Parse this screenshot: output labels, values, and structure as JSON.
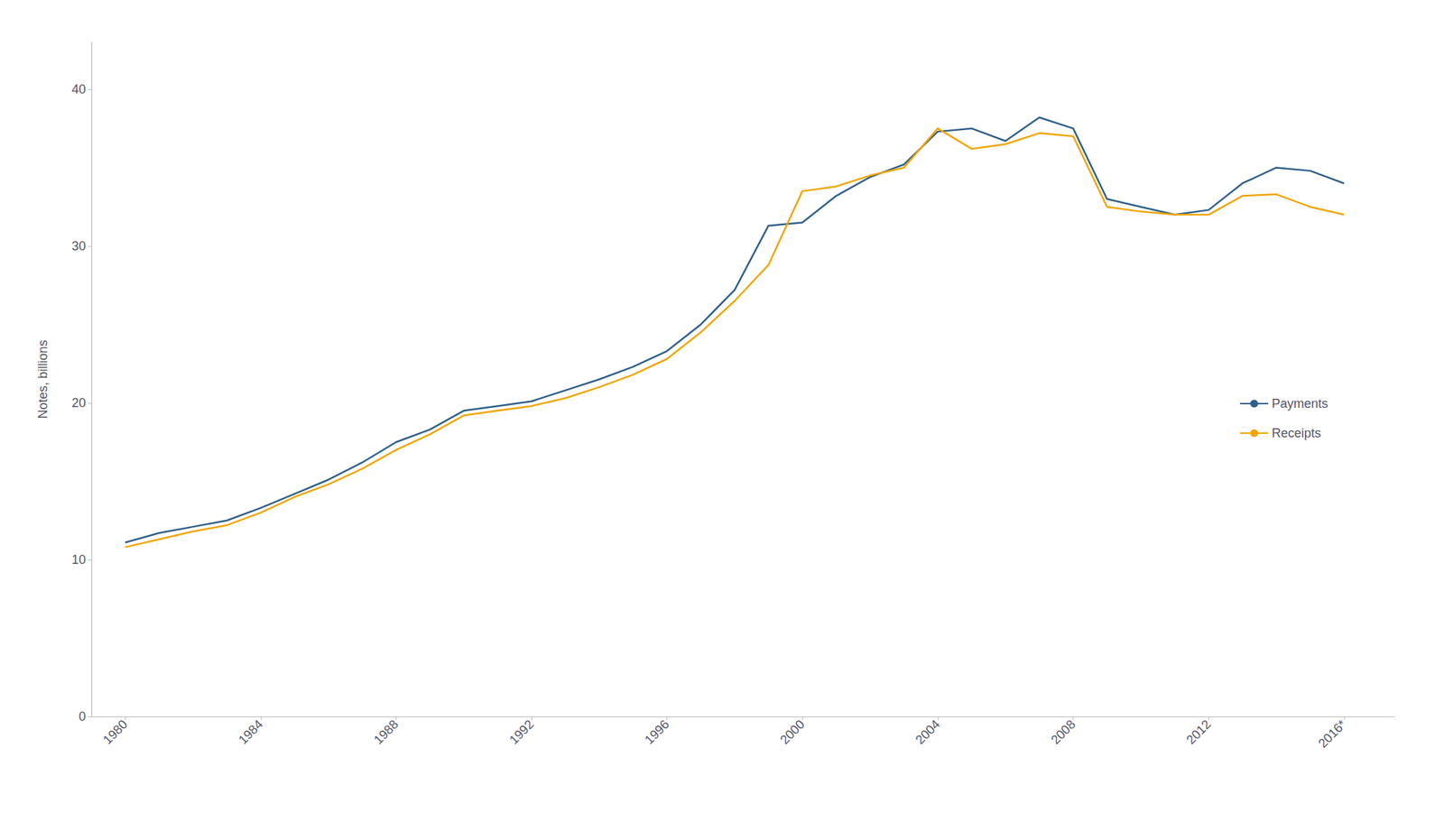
{
  "chart_data": {
    "type": "line",
    "x": [
      1980,
      1981,
      1982,
      1983,
      1984,
      1985,
      1986,
      1987,
      1988,
      1989,
      1990,
      1991,
      1992,
      1993,
      1994,
      1995,
      1996,
      1997,
      1998,
      1999,
      2000,
      2001,
      2002,
      2003,
      2004,
      2005,
      2006,
      2007,
      2008,
      2009,
      2010,
      2011,
      2012,
      2013,
      2014,
      2015,
      2016
    ],
    "series": [
      {
        "name": "Payments",
        "color": "#2E5F8A",
        "values": [
          11.1,
          11.7,
          12.1,
          12.5,
          13.3,
          14.2,
          15.1,
          16.2,
          17.5,
          18.3,
          19.5,
          19.8,
          20.1,
          20.8,
          21.5,
          22.3,
          23.3,
          25.0,
          27.2,
          31.3,
          31.5,
          33.2,
          34.4,
          35.2,
          37.3,
          37.5,
          36.7,
          38.2,
          37.5,
          33.0,
          32.5,
          32.0,
          32.3,
          34.0,
          35.0,
          34.8,
          34.0
        ]
      },
      {
        "name": "Receipts",
        "color": "#F0A500",
        "values": [
          10.8,
          11.3,
          11.8,
          12.2,
          13.0,
          14.0,
          14.8,
          15.8,
          17.0,
          18.0,
          19.2,
          19.5,
          19.8,
          20.3,
          21.0,
          21.8,
          22.8,
          24.5,
          26.5,
          28.8,
          33.5,
          33.8,
          34.5,
          35.0,
          37.5,
          36.2,
          36.5,
          37.2,
          37.0,
          32.5,
          32.2,
          32.0,
          32.0,
          33.2,
          33.3,
          32.5,
          32.0
        ]
      }
    ],
    "ylabel": "Notes, billions",
    "xlim": [
      1979.0,
      2017.5
    ],
    "xticks": [
      1980,
      1984,
      1988,
      1992,
      1996,
      2000,
      2004,
      2008,
      2012,
      {
        "value": 2016,
        "label": "2016*"
      }
    ],
    "ylim": [
      0,
      43
    ],
    "yticks": [
      0,
      10,
      20,
      30,
      40
    ],
    "grid": false,
    "legend": "right"
  }
}
